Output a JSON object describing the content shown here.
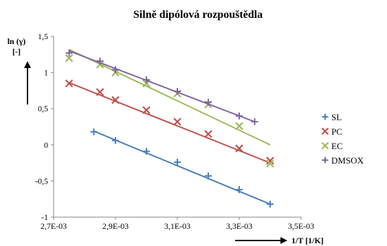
{
  "chart_data": {
    "type": "scatter",
    "title": "Silně dipólová rozpouštědla",
    "ylabel_line1": "ln (γ)",
    "ylabel_line2": "[-]",
    "xlabel": "1/T [1/K]",
    "xlim": [
      0.0027,
      0.0035
    ],
    "ylim": [
      -1,
      1.5
    ],
    "x_ticks": [
      0.0027,
      0.0029,
      0.0031,
      0.0033,
      0.0035
    ],
    "x_tick_labels": [
      "2,7E-03",
      "2,9E-03",
      "3,1E-03",
      "3,3E-03",
      "3,5E-03"
    ],
    "y_ticks": [
      -1,
      -0.5,
      0,
      0.5,
      1,
      1.5
    ],
    "y_tick_labels": [
      "-1",
      "-0,5",
      "0",
      "0,5",
      "1",
      "1,5"
    ],
    "grid": false,
    "legend_position": "right",
    "series": [
      {
        "name": "SL",
        "color": "#4a7ebb",
        "marker": "plus",
        "x": [
          0.00283,
          0.0029,
          0.003,
          0.0031,
          0.0032,
          0.0033,
          0.0034
        ],
        "y": [
          0.18,
          0.06,
          -0.09,
          -0.24,
          -0.43,
          -0.62,
          -0.82
        ],
        "trend": [
          [
            0.00283,
            0.19
          ],
          [
            0.0034,
            -0.82
          ]
        ]
      },
      {
        "name": "PC",
        "color": "#c0504d",
        "marker": "x",
        "x": [
          0.00275,
          0.00285,
          0.0029,
          0.003,
          0.0031,
          0.0032,
          0.0033,
          0.0034
        ],
        "y": [
          0.85,
          0.73,
          0.62,
          0.48,
          0.32,
          0.15,
          -0.05,
          -0.22
        ],
        "trend": [
          [
            0.00275,
            0.86
          ],
          [
            0.0034,
            -0.25
          ]
        ]
      },
      {
        "name": "EC",
        "color": "#9bbb59",
        "marker": "x",
        "x": [
          0.00275,
          0.00285,
          0.0029,
          0.003,
          0.0031,
          0.0032,
          0.0033,
          0.0034
        ],
        "y": [
          1.2,
          1.11,
          1.0,
          0.85,
          0.71,
          0.56,
          0.26,
          -0.26
        ],
        "trend": [
          [
            0.00275,
            1.32
          ],
          [
            0.0034,
            0.0
          ]
        ]
      },
      {
        "name": "DMSOX",
        "color": "#8064a2",
        "marker": "plus",
        "x": [
          0.00275,
          0.00285,
          0.0029,
          0.003,
          0.0031,
          0.0032,
          0.0033,
          0.00335
        ],
        "y": [
          1.27,
          1.16,
          1.04,
          0.9,
          0.74,
          0.59,
          0.4,
          0.32
        ],
        "trend": [
          [
            0.00275,
            1.3
          ],
          [
            0.00335,
            0.32
          ]
        ]
      }
    ]
  }
}
